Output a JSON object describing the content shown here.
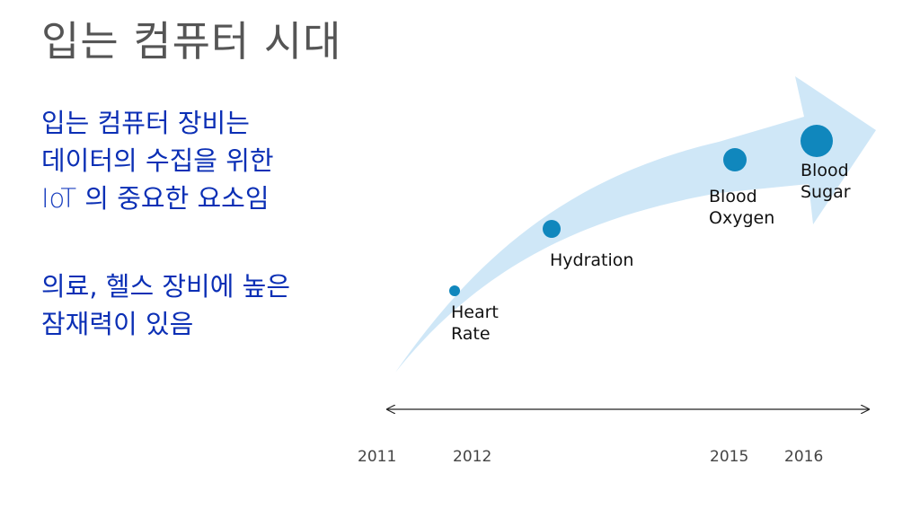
{
  "slide": {
    "title": "입는 컴퓨터 시대",
    "bullets": [
      {
        "lines": [
          "입는 컴퓨터 장비는",
          "데이터의 수집을 위한"
        ],
        "line3_prefix": "IoT",
        "line3_rest": " 의 중요한 요소임"
      },
      {
        "lines": [
          "의료, 헬스 장비에 높은",
          "잠재력이 있음"
        ]
      }
    ]
  },
  "timeline": {
    "milestones": [
      {
        "line1": "Heart",
        "line2": "Rate"
      },
      {
        "line1": "Hydration",
        "line2": ""
      },
      {
        "line1": "Blood",
        "line2": "Oxygen"
      },
      {
        "line1": "Blood",
        "line2": "Sugar"
      }
    ],
    "years": [
      "2011",
      "2012",
      "2015",
      "2016"
    ],
    "colors": {
      "arrow": "#cfe7f7",
      "marker": "#1087bd",
      "axis": "#222222"
    }
  }
}
